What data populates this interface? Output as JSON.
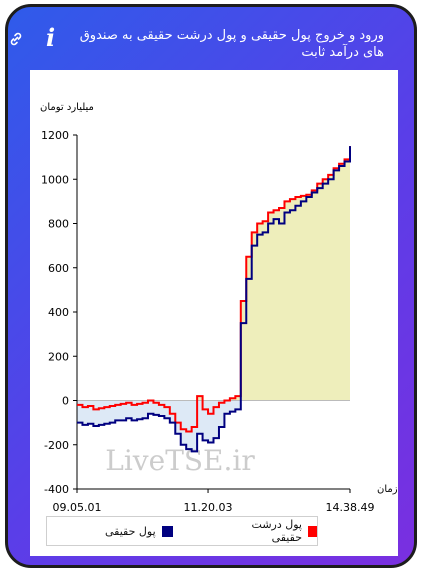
{
  "title": "ورود و خروج پول حقیقی و پول درشت حقیقی به صندوق های درآمد ثابت",
  "icons": {
    "info": "info-icon",
    "link": "link-icon"
  },
  "colors": {
    "series_real": "#000080",
    "series_big": "#ff0000",
    "fill_positive": "#eeeebb",
    "fill_negative": "#dde9f6"
  },
  "watermark": "LiveTSE.ir",
  "chart_data": {
    "type": "line",
    "ylabel": "میلیارد تومان",
    "xlabel": "زمان",
    "ylim": [
      -400,
      1200
    ],
    "yticks": [
      1200,
      1000,
      800,
      600,
      400,
      200,
      0,
      -200,
      -400
    ],
    "xticks": [
      "09.05.01",
      "11.20.03",
      "14.38.49"
    ],
    "grid": false,
    "legend_position": "bottom",
    "x": [
      0,
      0.02,
      0.04,
      0.06,
      0.08,
      0.1,
      0.12,
      0.14,
      0.16,
      0.18,
      0.2,
      0.22,
      0.24,
      0.26,
      0.28,
      0.3,
      0.32,
      0.34,
      0.36,
      0.38,
      0.4,
      0.42,
      0.44,
      0.46,
      0.48,
      0.5,
      0.52,
      0.54,
      0.56,
      0.58,
      0.6,
      0.62,
      0.64,
      0.66,
      0.68,
      0.7,
      0.72,
      0.74,
      0.76,
      0.78,
      0.8,
      0.82,
      0.84,
      0.86,
      0.88,
      0.9,
      0.92,
      0.94,
      0.96,
      0.98,
      1.0
    ],
    "series": [
      {
        "name": "پول حقیقی",
        "color": "#000080",
        "values": [
          -100,
          -110,
          -105,
          -115,
          -110,
          -105,
          -100,
          -90,
          -90,
          -80,
          -90,
          -85,
          -80,
          -60,
          -65,
          -70,
          -80,
          -100,
          -150,
          -200,
          -220,
          -230,
          -150,
          -180,
          -190,
          -170,
          -120,
          -60,
          -50,
          -40,
          350,
          550,
          700,
          750,
          760,
          800,
          820,
          800,
          850,
          860,
          880,
          900,
          920,
          940,
          960,
          980,
          1000,
          1040,
          1060,
          1080,
          1150
        ]
      },
      {
        "name": "پول درشت حقیقی",
        "color": "#ff0000",
        "values": [
          -20,
          -30,
          -25,
          -40,
          -35,
          -30,
          -25,
          -20,
          -15,
          -10,
          -20,
          -15,
          -10,
          0,
          -10,
          -20,
          -30,
          -60,
          -100,
          -130,
          -140,
          -120,
          20,
          -40,
          -60,
          -30,
          -10,
          0,
          10,
          20,
          450,
          650,
          760,
          800,
          810,
          850,
          860,
          870,
          900,
          910,
          920,
          925,
          930,
          950,
          980,
          1000,
          1020,
          1050,
          1070,
          1090,
          1150
        ]
      }
    ]
  }
}
